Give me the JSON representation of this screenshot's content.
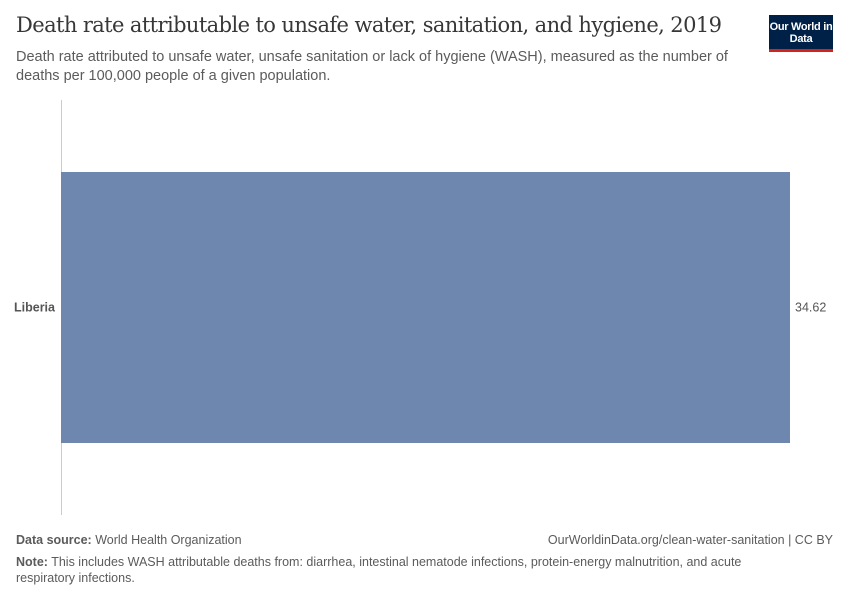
{
  "header": {
    "title": "Death rate attributable to unsafe water, sanitation, and hygiene, 2019",
    "subtitle": "Death rate attributed to unsafe water, unsafe sanitation or lack of hygiene (WASH), measured as the number of deaths per 100,000 people of a given population.",
    "logo_text": "Our World in Data"
  },
  "chart_data": {
    "type": "bar",
    "orientation": "horizontal",
    "title": "Death rate attributable to unsafe water, sanitation, and hygiene, 2019",
    "categories": [
      "Liberia"
    ],
    "values": [
      34.62
    ],
    "value_labels": [
      "34.62"
    ],
    "xlim": [
      0,
      34.62
    ],
    "bar_color": "#6d87ae",
    "grid": false
  },
  "footer": {
    "source_label": "Data source:",
    "source_value": "World Health Organization",
    "url": "OurWorldinData.org/clean-water-sanitation | CC BY",
    "note_label": "Note:",
    "note_value": "This includes WASH attributable deaths from: diarrhea, intestinal nematode infections, protein-energy malnutrition, and acute respiratory infections."
  }
}
